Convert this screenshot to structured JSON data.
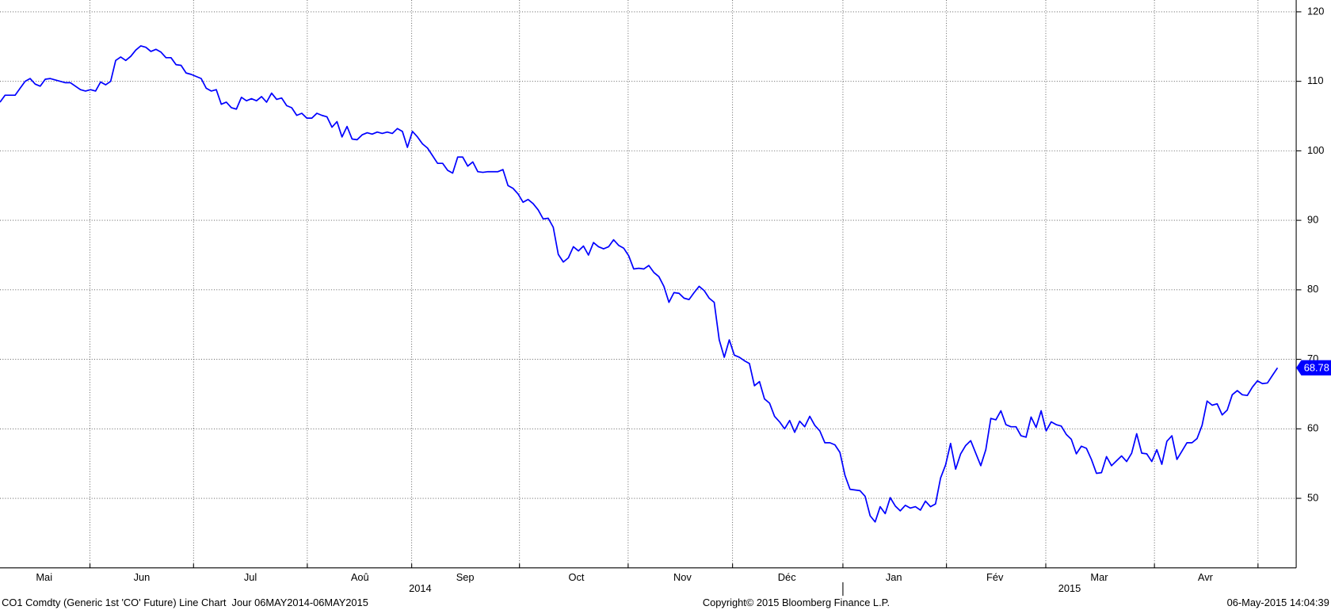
{
  "chart_data": {
    "type": "line",
    "months": [
      "Mai",
      "Jun",
      "Jul",
      "Aoû",
      "Sep",
      "Oct",
      "Nov",
      "Déc",
      "Jan",
      "Fév",
      "Mar",
      "Avr"
    ],
    "years": [
      "2014",
      "2015"
    ],
    "series": [
      {
        "color": "#0000ff",
        "values": [
          107,
          108,
          108,
          108,
          109,
          110,
          110.4,
          109.6,
          109.3,
          110.3,
          110.4,
          110.2,
          110,
          109.8,
          109.8,
          109.3,
          108.8,
          108.6,
          108.8,
          108.6,
          109.9,
          109.5,
          110,
          113,
          113.5,
          113,
          113.6,
          114.5,
          115.1,
          114.9,
          114.3,
          114.6,
          114.2,
          113.4,
          113.4,
          112.4,
          112.3,
          111.2,
          111,
          110.7,
          110.4,
          109,
          108.6,
          108.8,
          106.7,
          107,
          106.2,
          106,
          107.7,
          107.2,
          107.5,
          107.2,
          107.8,
          107,
          108.3,
          107.4,
          107.6,
          106.5,
          106.2,
          105.1,
          105.4,
          104.7,
          104.7,
          105.4,
          105.1,
          104.9,
          103.4,
          104.2,
          102,
          103.5,
          101.7,
          101.6,
          102.3,
          102.6,
          102.4,
          102.7,
          102.5,
          102.7,
          102.5,
          103.2,
          102.8,
          100.5,
          102.8,
          102,
          101,
          100.4,
          99.3,
          98.2,
          98.2,
          97.2,
          96.8,
          99.1,
          99.1,
          97.8,
          98.4,
          97,
          96.9,
          97,
          97,
          97,
          97.3,
          95,
          94.6,
          93.8,
          92.6,
          93,
          92.4,
          91.5,
          90.2,
          90.3,
          89,
          85.1,
          84,
          84.6,
          86.2,
          85.6,
          86.3,
          85,
          86.8,
          86.2,
          85.9,
          86.2,
          87.2,
          86.4,
          86,
          84.9,
          83,
          83.1,
          83,
          83.5,
          82.5,
          81.9,
          80.5,
          78.2,
          79.6,
          79.5,
          78.8,
          78.6,
          79.6,
          80.5,
          79.9,
          78.8,
          78.2,
          72.8,
          70.3,
          72.8,
          70.6,
          70.3,
          69.8,
          69.4,
          66.2,
          66.8,
          64.3,
          63.7,
          61.8,
          61,
          60,
          61.2,
          59.5,
          61.1,
          60.3,
          61.8,
          60.5,
          59.7,
          58,
          58,
          57.7,
          56.6,
          53.3,
          51.3,
          51.2,
          51.1,
          50.3,
          47.5,
          46.6,
          48.8,
          47.8,
          50.1,
          48.9,
          48.2,
          49,
          48.6,
          48.8,
          48.3,
          49.6,
          48.8,
          49.2,
          52.9,
          54.8,
          57.9,
          54.2,
          56.4,
          57.6,
          58.3,
          56.5,
          54.7,
          57,
          61.5,
          61.3,
          62.6,
          60.6,
          60.3,
          60.3,
          59,
          58.8,
          61.7,
          60.2,
          62.6,
          59.7,
          61,
          60.6,
          60.4,
          59.2,
          58.5,
          56.4,
          57.5,
          57.2,
          55.6,
          53.6,
          53.7,
          56,
          54.7,
          55.4,
          56.1,
          55.3,
          56.5,
          59.3,
          56.5,
          56.4,
          55.3,
          57,
          54.9,
          58.2,
          59,
          55.6,
          56.8,
          58,
          58,
          58.6,
          60.5,
          64,
          63.4,
          63.6,
          62,
          62.7,
          64.9,
          65.5,
          64.9,
          64.8,
          66,
          66.9,
          66.5,
          66.6,
          67.7,
          68.78
        ]
      }
    ],
    "ylim": [
      40,
      121.7
    ],
    "yticks": [
      50,
      60,
      70,
      80,
      90,
      100,
      110,
      120
    ],
    "grid": true,
    "footer_left": "CO1 Comdty (Generic 1st 'CO' Future) Line Chart  Jour 06MAY2014-06MAY2015",
    "footer_center": "Copyright© 2015 Bloomberg Finance L.P.",
    "footer_right": "06-May-2015 14:04:39"
  }
}
